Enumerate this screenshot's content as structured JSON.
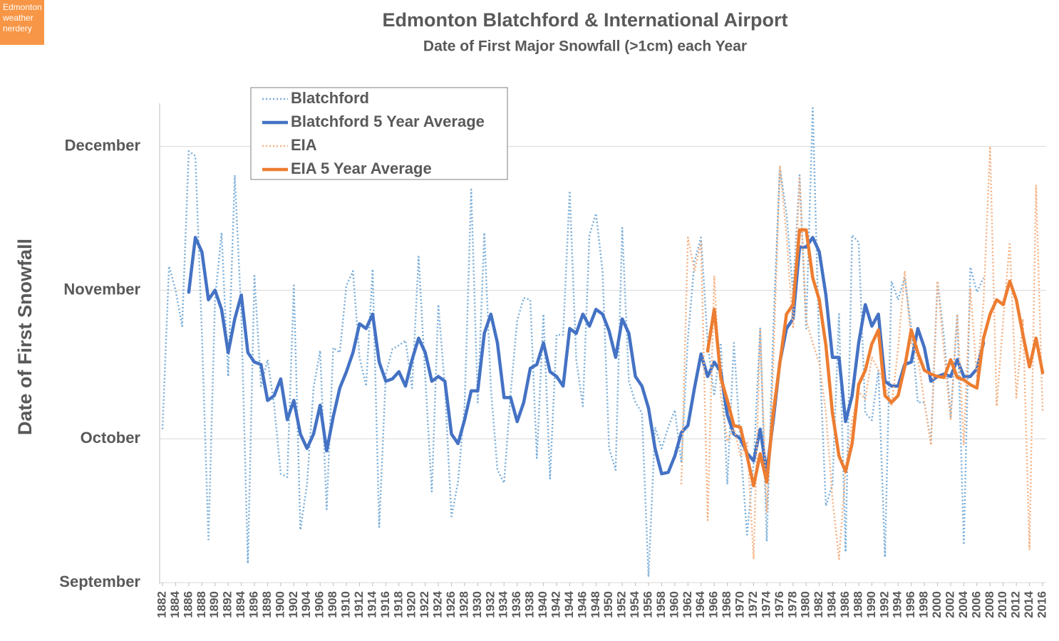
{
  "chart_data": {
    "type": "line",
    "watermark": "Edmonton weather nerdery",
    "title": "Edmonton Blatchford & International Airport",
    "subtitle": "Date of First Major Snowfall (>1cm) each Year",
    "y_label": "Date of First Snowfall",
    "legend": "top-left",
    "grid": true,
    "xlim": [
      1882,
      2016
    ],
    "ylim": [
      0,
      100
    ],
    "yticks": [
      {
        "value": 0,
        "label": "September"
      },
      {
        "value": 30,
        "label": "October"
      },
      {
        "value": 61,
        "label": "November"
      },
      {
        "value": 91,
        "label": "December"
      }
    ],
    "xticks": [
      1882,
      1884,
      1886,
      1888,
      1890,
      1892,
      1894,
      1896,
      1898,
      1900,
      1902,
      1904,
      1906,
      1908,
      1910,
      1912,
      1914,
      1916,
      1918,
      1920,
      1922,
      1924,
      1926,
      1928,
      1930,
      1932,
      1934,
      1936,
      1938,
      1940,
      1942,
      1944,
      1946,
      1948,
      1950,
      1952,
      1954,
      1956,
      1958,
      1960,
      1962,
      1964,
      1966,
      1968,
      1970,
      1972,
      1974,
      1976,
      1978,
      1980,
      1982,
      1984,
      1986,
      1988,
      1990,
      1992,
      1994,
      1996,
      1998,
      2000,
      2002,
      2004,
      2006,
      2008,
      2010,
      2012,
      2014,
      2016
    ],
    "x": [
      1882,
      1883,
      1884,
      1885,
      1886,
      1887,
      1888,
      1889,
      1890,
      1891,
      1892,
      1893,
      1894,
      1895,
      1896,
      1897,
      1898,
      1899,
      1900,
      1901,
      1902,
      1903,
      1904,
      1905,
      1906,
      1907,
      1908,
      1909,
      1910,
      1911,
      1912,
      1913,
      1914,
      1915,
      1916,
      1917,
      1918,
      1919,
      1920,
      1921,
      1922,
      1923,
      1924,
      1925,
      1926,
      1927,
      1928,
      1929,
      1930,
      1931,
      1932,
      1933,
      1934,
      1935,
      1936,
      1937,
      1938,
      1939,
      1940,
      1941,
      1942,
      1943,
      1944,
      1945,
      1946,
      1947,
      1948,
      1949,
      1950,
      1951,
      1952,
      1953,
      1954,
      1955,
      1956,
      1957,
      1958,
      1959,
      1960,
      1961,
      1962,
      1963,
      1964,
      1965,
      1966,
      1967,
      1968,
      1969,
      1970,
      1971,
      1972,
      1973,
      1974,
      1975,
      1976,
      1977,
      1978,
      1979,
      1980,
      1981,
      1982,
      1983,
      1984,
      1985,
      1986,
      1987,
      1988,
      1989,
      1990,
      1991,
      1992,
      1993,
      1994,
      1995,
      1996,
      1997,
      1998,
      1999,
      2000,
      2001,
      2002,
      2003,
      2004,
      2005,
      2006,
      2007,
      2008,
      2009,
      2010,
      2011,
      2012,
      2013,
      2014,
      2015,
      2016
    ],
    "series": [
      {
        "name": "Blatchford",
        "color": "#7aaed9",
        "style": "dotted",
        "values": [
          32,
          66,
          61,
          53.5,
          90,
          89,
          52,
          9,
          59,
          73,
          43,
          85,
          56,
          4,
          64,
          41,
          46.5,
          37,
          22.7,
          22,
          62,
          11,
          20.5,
          40.6,
          48.4,
          15.3,
          49,
          48,
          62,
          65,
          47,
          41,
          65.4,
          11.6,
          43.5,
          48.7,
          49.5,
          50.5,
          40.6,
          68,
          43,
          19,
          58,
          40.6,
          13.8,
          21,
          37,
          82,
          37.6,
          73,
          40.6,
          23.5,
          20.8,
          39.4,
          54.7,
          59.4,
          59,
          26,
          56,
          21.7,
          51.7,
          51.7,
          81.7,
          46.5,
          36.8,
          72.5,
          77,
          65,
          28,
          23.5,
          74,
          42,
          37.6,
          35.4,
          1.2,
          32.4,
          28,
          32.4,
          36,
          25,
          51,
          67,
          72,
          50,
          39,
          50,
          20.5,
          50,
          28.7,
          10,
          25,
          53,
          8.6,
          53,
          86.6,
          77,
          60.6,
          85,
          53,
          99,
          48.7,
          16,
          20.5,
          56,
          6.4,
          72.5,
          71,
          35.4,
          33.9,
          44.3,
          5.3,
          62.9,
          59,
          63.6,
          53,
          37.6,
          37.6,
          29.4,
          62.9,
          51,
          34.6,
          56,
          7.9,
          65.8,
          60.6,
          63.6,
          null,
          null,
          null,
          null,
          null,
          null,
          null,
          null,
          null
        ]
      },
      {
        "name": "Blatchford 5 Year Average",
        "color": "#4472c4",
        "style": "solid",
        "values": [
          null,
          null,
          null,
          null,
          60.6,
          72,
          69,
          59,
          61,
          57,
          48,
          55,
          60,
          48,
          46,
          45.5,
          38,
          39,
          42.5,
          34,
          38,
          31,
          28,
          31,
          37,
          27.5,
          34.6,
          40.6,
          44,
          48,
          54,
          53,
          56,
          46,
          42,
          42.5,
          44,
          41,
          46.5,
          51,
          48,
          42,
          43,
          42,
          31,
          29,
          34,
          40,
          40,
          52,
          56,
          50,
          38.6,
          38.6,
          33.6,
          37.6,
          44.7,
          45.5,
          50,
          44,
          43,
          41,
          53,
          52,
          56,
          53.5,
          57,
          56,
          52.5,
          47,
          55,
          52,
          43,
          41,
          36.4,
          28,
          22.7,
          23,
          26.4,
          31.3,
          32.8,
          40.6,
          47.7,
          43,
          46,
          44,
          35,
          31,
          30,
          27,
          25.4,
          32,
          23,
          34,
          46,
          53,
          55,
          70,
          70,
          72,
          69,
          60,
          47,
          47,
          33.6,
          39,
          50,
          58,
          53.5,
          56,
          42,
          41,
          41,
          45.5,
          46,
          53,
          49,
          42,
          43,
          43.5,
          43,
          46.5,
          43,
          43,
          44.6,
          50,
          null,
          null,
          null,
          null,
          null,
          null,
          null,
          null,
          null
        ]
      },
      {
        "name": "EIA",
        "color": "#f4b183",
        "style": "dotted",
        "values": [
          null,
          null,
          null,
          null,
          null,
          null,
          null,
          null,
          null,
          null,
          null,
          null,
          null,
          null,
          null,
          null,
          null,
          null,
          null,
          null,
          null,
          null,
          null,
          null,
          null,
          null,
          null,
          null,
          null,
          null,
          null,
          null,
          null,
          null,
          null,
          null,
          null,
          null,
          null,
          null,
          null,
          null,
          null,
          null,
          null,
          null,
          null,
          null,
          null,
          null,
          null,
          null,
          null,
          null,
          null,
          null,
          null,
          null,
          null,
          null,
          null,
          null,
          null,
          null,
          null,
          null,
          null,
          null,
          null,
          null,
          null,
          null,
          null,
          null,
          null,
          null,
          null,
          null,
          null,
          20.5,
          72,
          65,
          71,
          13,
          64,
          39,
          29.4,
          32.4,
          26.4,
          29.4,
          4.9,
          53,
          14.6,
          45.8,
          87,
          72.5,
          53,
          84.4,
          54.7,
          50,
          45.8,
          35.4,
          17.5,
          4.9,
          23.5,
          33.9,
          39.8,
          38.3,
          47,
          44.3,
          41.3,
          36.8,
          48.7,
          65,
          50,
          47,
          37.6,
          28.7,
          62.9,
          48,
          33.9,
          56,
          28.7,
          61.4,
          42.8,
          58.4,
          91,
          36.8,
          54.7,
          71,
          38.6,
          55,
          6.8,
          83,
          35.7
        ]
      },
      {
        "name": "EIA 5 Year Average",
        "color": "#ed7d31",
        "style": "solid",
        "values": [
          null,
          null,
          null,
          null,
          null,
          null,
          null,
          null,
          null,
          null,
          null,
          null,
          null,
          null,
          null,
          null,
          null,
          null,
          null,
          null,
          null,
          null,
          null,
          null,
          null,
          null,
          null,
          null,
          null,
          null,
          null,
          null,
          null,
          null,
          null,
          null,
          null,
          null,
          null,
          null,
          null,
          null,
          null,
          null,
          null,
          null,
          null,
          null,
          null,
          null,
          null,
          null,
          null,
          null,
          null,
          null,
          null,
          null,
          null,
          null,
          null,
          null,
          null,
          null,
          null,
          null,
          null,
          null,
          null,
          null,
          null,
          null,
          null,
          null,
          null,
          null,
          null,
          null,
          null,
          null,
          null,
          null,
          null,
          48.3,
          57,
          42.8,
          38,
          32.8,
          32.4,
          26.4,
          20.2,
          26.9,
          21,
          35.4,
          45.8,
          56,
          58,
          73.6,
          73.6,
          63.6,
          59,
          49.5,
          35.4,
          26.4,
          23.2,
          29,
          41.3,
          44.3,
          49.8,
          52.7,
          39,
          37.6,
          39,
          45,
          52.7,
          48,
          44.3,
          43.5,
          43,
          42.8,
          46.5,
          42.8,
          42.3,
          41.3,
          40.6,
          51,
          56,
          59,
          58,
          62.9,
          59,
          51.7,
          45,
          51,
          43.8
        ]
      }
    ]
  }
}
